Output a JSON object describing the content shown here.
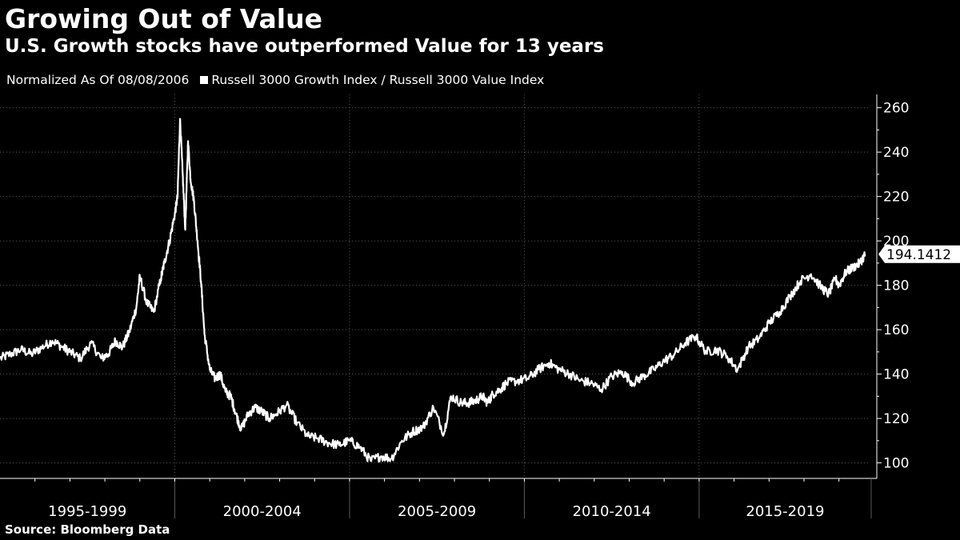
{
  "title": "Growing Out of Value",
  "subtitle": "U.S. Growth stocks have outperformed Value for 13 years",
  "legend": {
    "note": "Normalized As Of 08/08/2006",
    "series_label": "Russell 3000 Growth Index / Russell 3000 Value Index"
  },
  "source": "Source: Bloomberg Data",
  "colors": {
    "background": "#000000",
    "line": "#ffffff",
    "grid": "#5a5a5a"
  },
  "chart_data": {
    "type": "line",
    "title": "Growing Out of Value",
    "subtitle": "U.S. Growth stocks have outperformed Value for 13 years",
    "xlabel": "",
    "ylabel": "",
    "ylim": [
      93,
      266
    ],
    "xlim": [
      1995.0,
      2019.9
    ],
    "yticks": [
      100,
      120,
      140,
      160,
      180,
      200,
      220,
      240,
      260
    ],
    "grid": true,
    "legend_position": "top-left",
    "categories": [
      "1995-1999",
      "2000-2004",
      "2005-2009",
      "2010-2014",
      "2015-2019"
    ],
    "category_boundaries": [
      1995.0,
      2000.0,
      2005.0,
      2010.0,
      2015.0,
      2020.0
    ],
    "last_value_label": "194.1412",
    "series": [
      {
        "name": "Russell 3000 Growth Index / Russell 3000 Value Index",
        "x": [
          1995.0,
          1995.3,
          1995.6,
          1995.9,
          1996.2,
          1996.5,
          1996.8,
          1997.0,
          1997.3,
          1997.6,
          1997.9,
          1998.1,
          1998.3,
          1998.5,
          1998.7,
          1998.9,
          1999.0,
          1999.2,
          1999.4,
          1999.6,
          1999.7,
          1999.85,
          2000.0,
          2000.08,
          2000.15,
          2000.22,
          2000.3,
          2000.38,
          2000.45,
          2000.55,
          2000.65,
          2000.75,
          2000.85,
          2001.0,
          2001.15,
          2001.3,
          2001.45,
          2001.6,
          2001.75,
          2001.9,
          2002.1,
          2002.3,
          2002.5,
          2002.7,
          2002.9,
          2003.2,
          2003.5,
          2003.8,
          2004.1,
          2004.4,
          2004.7,
          2005.0,
          2005.3,
          2005.6,
          2005.9,
          2006.2,
          2006.5,
          2006.8,
          2007.1,
          2007.4,
          2007.7,
          2007.9,
          2008.2,
          2008.4,
          2008.6,
          2008.8,
          2008.95,
          2009.1,
          2009.3,
          2009.5,
          2009.8,
          2010.1,
          2010.4,
          2010.7,
          2011.0,
          2011.3,
          2011.6,
          2011.9,
          2012.2,
          2012.5,
          2012.8,
          2013.1,
          2013.4,
          2013.7,
          2014.0,
          2014.3,
          2014.6,
          2014.9,
          2015.2,
          2015.5,
          2015.8,
          2016.1,
          2016.4,
          2016.7,
          2017.0,
          2017.3,
          2017.6,
          2017.9,
          2018.2,
          2018.5,
          2018.7,
          2018.9,
          2019.0,
          2019.2,
          2019.4,
          2019.6,
          2019.75
        ],
        "y": [
          147,
          149,
          151,
          149,
          152,
          155,
          152,
          150,
          147,
          154,
          147,
          149,
          155,
          152,
          159,
          170,
          184,
          172,
          168,
          183,
          190,
          200,
          212,
          220,
          255,
          232,
          205,
          245,
          228,
          218,
          200,
          182,
          158,
          142,
          138,
          140,
          132,
          130,
          122,
          115,
          122,
          125,
          123,
          120,
          122,
          126,
          118,
          112,
          111,
          109,
          108,
          110,
          107,
          101,
          103,
          102,
          110,
          114,
          116,
          125,
          113,
          130,
          127,
          127,
          128,
          130,
          127,
          131,
          133,
          136,
          137,
          138,
          142,
          145,
          142,
          140,
          137,
          136,
          133,
          139,
          141,
          136,
          139,
          142,
          146,
          149,
          154,
          157,
          150,
          151,
          148,
          142,
          152,
          156,
          163,
          168,
          175,
          182,
          185,
          179,
          176,
          183,
          180,
          186,
          188,
          190,
          194
        ]
      }
    ]
  }
}
